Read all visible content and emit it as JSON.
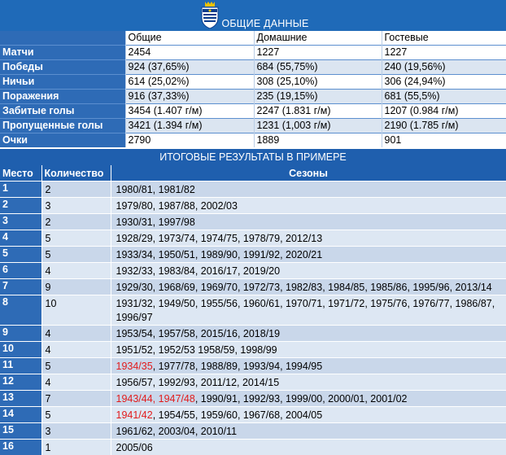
{
  "header": {
    "title": "ОБЩИЕ ДАННЫЕ"
  },
  "general": {
    "columns": [
      "Общие",
      "Домашние",
      "Гостевые"
    ],
    "rows": [
      {
        "label": "Матчи",
        "values": [
          "2454",
          "1227",
          "1227"
        ]
      },
      {
        "label": "Победы",
        "values": [
          "924 (37,65%)",
          "684 (55,75%)",
          "240 (19,56%)"
        ]
      },
      {
        "label": "Ничьи",
        "values": [
          "614 (25,02%)",
          "308 (25,10%)",
          "306 (24,94%)"
        ]
      },
      {
        "label": "Поражения",
        "values": [
          "916 (37,33%)",
          "235 (19,15%)",
          "681 (55,5%)"
        ]
      },
      {
        "label": "Забитые голы",
        "values": [
          "3454 (1.407 г/м)",
          "2247 (1.831 г/м)",
          "1207 (0.984 г/м)"
        ]
      },
      {
        "label": "Пропущенные голы",
        "values": [
          "3421 (1.394 г/м)",
          "1231 (1,003 г/м)",
          "2190 (1.785 г/м)"
        ]
      },
      {
        "label": "Очки",
        "values": [
          "2790",
          "1889",
          "901"
        ]
      }
    ]
  },
  "results": {
    "title": "ИТОГОВЫЕ РЕЗУЛЬТАТЫ В ПРИМЕРЕ",
    "headers": {
      "place": "Место",
      "count": "Количество",
      "seasons": "Сезоны"
    },
    "rows": [
      {
        "place": "1",
        "count": "2",
        "red": "",
        "rest": "1980/81, 1981/82"
      },
      {
        "place": "2",
        "count": "3",
        "red": "",
        "rest": "1979/80, 1987/88, 2002/03"
      },
      {
        "place": "3",
        "count": "2",
        "red": "",
        "rest": "1930/31, 1997/98"
      },
      {
        "place": "4",
        "count": "5",
        "red": "",
        "rest": "1928/29, 1973/74, 1974/75, 1978/79, 2012/13"
      },
      {
        "place": "5",
        "count": "5",
        "red": "",
        "rest": "1933/34, 1950/51, 1989/90, 1991/92, 2020/21"
      },
      {
        "place": "6",
        "count": "4",
        "red": "",
        "rest": "1932/33, 1983/84, 2016/17, 2019/20"
      },
      {
        "place": "7",
        "count": "9",
        "red": "",
        "rest": "1929/30, 1968/69, 1969/70, 1972/73, 1982/83, 1984/85, 1985/86, 1995/96, 2013/14"
      },
      {
        "place": "8",
        "count": "10",
        "red": "",
        "rest": "1931/32, 1949/50, 1955/56, 1960/61, 1970/71, 1971/72, 1975/76, 1976/77, 1986/87, 1996/97"
      },
      {
        "place": "9",
        "count": "4",
        "red": "",
        "rest": "1953/54, 1957/58, 2015/16, 2018/19"
      },
      {
        "place": "10",
        "count": "4",
        "red": "",
        "rest": "1951/52, 1952/53 1958/59, 1998/99"
      },
      {
        "place": "11",
        "count": "5",
        "red": "1934/35",
        "rest": ", 1977/78, 1988/89, 1993/94, 1994/95"
      },
      {
        "place": "12",
        "count": "4",
        "red": "",
        "rest": "1956/57, 1992/93, 2011/12, 2014/15"
      },
      {
        "place": "13",
        "count": "7",
        "red": "1943/44, 1947/48",
        "rest": ", 1990/91, 1992/93, 1999/00, 2000/01, 2001/02"
      },
      {
        "place": "14",
        "count": "5",
        "red": "1941/42",
        "rest": ", 1954/55, 1959/60, 1967/68, 2004/05"
      },
      {
        "place": "15",
        "count": "3",
        "red": "",
        "rest": "1961/62, 2003/04, 2010/11"
      },
      {
        "place": "16",
        "count": "1",
        "red": "",
        "rest": "2005/06"
      }
    ]
  }
}
